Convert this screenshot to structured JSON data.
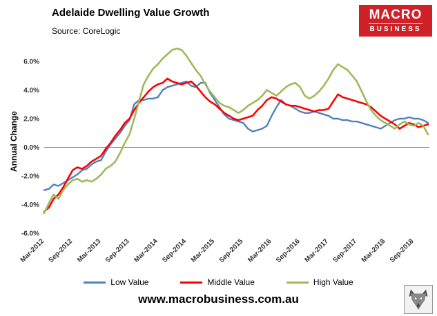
{
  "logo": {
    "line1": "MACRO",
    "line2": "BUSINESS",
    "bg_color": "#d02028"
  },
  "footer": {
    "url": "www.macrobusiness.com.au"
  },
  "chart_data": {
    "type": "line",
    "title": "Adelaide Dwelling Value Growth",
    "source": "Source: CoreLogic",
    "ylabel": "Annual Change",
    "ylim": [
      -6,
      7.3
    ],
    "yticks": [
      -6,
      -4,
      -2,
      0,
      2,
      4,
      6
    ],
    "ytick_labels": [
      "-6.0%",
      "-4.0%",
      "-2.0%",
      "0.0%",
      "2.0%",
      "4.0%",
      "6.0%"
    ],
    "x_start": "Mar-2012",
    "x_frequency": "monthly",
    "x_tick_every": 6,
    "x_tick_labels": [
      "Mar-2012",
      "Sep-2012",
      "Mar-2013",
      "Sep-2013",
      "Mar-2014",
      "Sep-2014",
      "Mar-2015",
      "Sep-2015",
      "Mar-2016",
      "Sep-2016",
      "Mar-2017",
      "Sep-2017",
      "Mar-2018",
      "Sep-2018"
    ],
    "legend_position": "bottom",
    "grid": false,
    "series": [
      {
        "name": "Low Value",
        "color": "#4f81bd",
        "width": 2.4,
        "values": [
          -3.0,
          -2.9,
          -2.6,
          -2.7,
          -2.5,
          -2.3,
          -2.1,
          -1.9,
          -1.6,
          -1.5,
          -1.2,
          -1.0,
          -0.9,
          -0.3,
          0.2,
          0.6,
          1.0,
          1.5,
          1.9,
          3.0,
          3.3,
          3.3,
          3.4,
          3.4,
          3.5,
          4.0,
          4.2,
          4.3,
          4.4,
          4.5,
          4.6,
          4.3,
          4.2,
          4.5,
          4.5,
          3.8,
          3.3,
          2.8,
          2.3,
          2.0,
          1.9,
          1.8,
          1.7,
          1.3,
          1.1,
          1.2,
          1.3,
          1.5,
          2.2,
          2.8,
          3.3,
          3.0,
          2.9,
          2.7,
          2.5,
          2.4,
          2.4,
          2.5,
          2.4,
          2.3,
          2.2,
          2.0,
          2.0,
          1.9,
          1.9,
          1.8,
          1.8,
          1.7,
          1.6,
          1.5,
          1.4,
          1.3,
          1.5,
          1.7,
          1.9,
          2.0,
          2.0,
          2.1,
          2.0,
          2.0,
          1.9,
          1.7
        ]
      },
      {
        "name": "Middle Value",
        "color": "#ff0000",
        "width": 2.6,
        "values": [
          -4.5,
          -4.2,
          -3.6,
          -3.3,
          -2.8,
          -2.2,
          -1.6,
          -1.4,
          -1.5,
          -1.3,
          -1.0,
          -0.8,
          -0.6,
          -0.1,
          0.3,
          0.8,
          1.2,
          1.7,
          2.0,
          2.6,
          3.1,
          3.5,
          3.9,
          4.2,
          4.4,
          4.5,
          4.8,
          4.6,
          4.5,
          4.4,
          4.5,
          4.6,
          4.3,
          3.9,
          3.5,
          3.2,
          3.0,
          2.7,
          2.4,
          2.2,
          2.0,
          1.9,
          2.0,
          2.1,
          2.2,
          2.6,
          2.9,
          3.3,
          3.5,
          3.4,
          3.2,
          3.0,
          2.9,
          2.9,
          2.8,
          2.7,
          2.6,
          2.5,
          2.6,
          2.6,
          2.7,
          3.2,
          3.7,
          3.5,
          3.4,
          3.3,
          3.2,
          3.1,
          3.0,
          2.8,
          2.5,
          2.2,
          2.0,
          1.8,
          1.6,
          1.3,
          1.5,
          1.7,
          1.6,
          1.4,
          1.5,
          1.6
        ]
      },
      {
        "name": "High Value",
        "color": "#9bbb59",
        "width": 2.6,
        "values": [
          -4.6,
          -3.9,
          -3.3,
          -3.6,
          -3.0,
          -2.6,
          -2.3,
          -2.2,
          -2.4,
          -2.3,
          -2.4,
          -2.2,
          -1.9,
          -1.5,
          -1.3,
          -1.0,
          -0.4,
          0.3,
          0.9,
          2.0,
          3.2,
          4.4,
          5.0,
          5.5,
          5.8,
          6.2,
          6.5,
          6.8,
          6.9,
          6.8,
          6.4,
          5.9,
          5.4,
          5.0,
          4.4,
          3.9,
          3.5,
          3.1,
          2.9,
          2.8,
          2.6,
          2.4,
          2.6,
          2.9,
          3.1,
          3.3,
          3.6,
          4.0,
          3.8,
          3.6,
          3.9,
          4.2,
          4.4,
          4.5,
          4.2,
          3.6,
          3.4,
          3.6,
          3.9,
          4.3,
          4.8,
          5.4,
          5.8,
          5.6,
          5.4,
          5.0,
          4.6,
          3.9,
          3.2,
          2.6,
          2.2,
          1.9,
          1.7,
          1.5,
          1.3,
          1.6,
          1.8,
          1.6,
          1.5,
          1.7,
          1.5,
          0.9
        ]
      }
    ]
  }
}
